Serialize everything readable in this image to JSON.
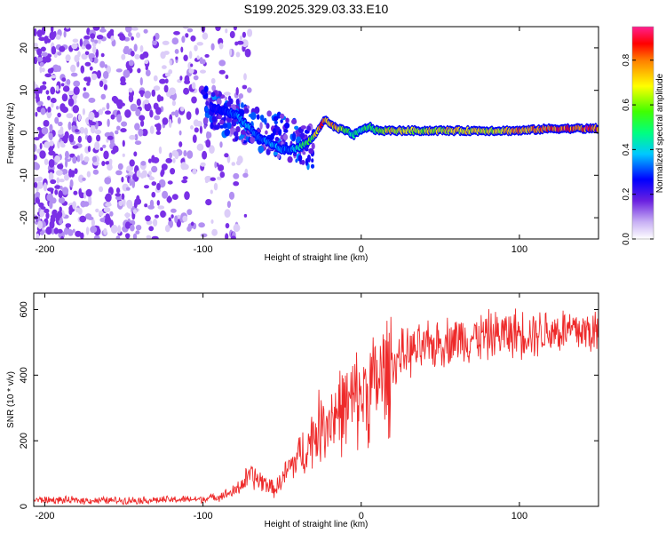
{
  "figure_title": "S199.2025.329.03.33.E10",
  "colors": {
    "noise": "#7f3fe0",
    "line": "#ee2a2a",
    "axis": "#000000",
    "colormap": [
      "#ffffff",
      "#b090f0",
      "#6020e0",
      "#0000ff",
      "#00c8ff",
      "#00ff80",
      "#60ff00",
      "#ffff00",
      "#ff8000",
      "#ff0000",
      "#ff2090"
    ]
  },
  "chart_data": [
    {
      "type": "heatmap",
      "title": "S199.2025.329.03.33.E10",
      "xlabel": "Height of straight line (km)",
      "ylabel": "Frequency (Hz)",
      "xlim": [
        -207,
        150
      ],
      "ylim": [
        -25,
        25
      ],
      "xticks": [
        -200,
        -100,
        0,
        100
      ],
      "xtick_labels": [
        "-200",
        "-100",
        "0",
        "100"
      ],
      "yticks": [
        -20,
        -10,
        0,
        10,
        20
      ],
      "ytick_labels": [
        "-20",
        "-10",
        "0",
        "10",
        "20"
      ],
      "colorbar": {
        "label": "Normalized spectral amplitude",
        "range": [
          0,
          0.95
        ],
        "ticks": [
          0,
          0.2,
          0.4,
          0.6,
          0.8
        ],
        "tick_labels": [
          "0.0",
          "0.2",
          "0.4",
          "0.6",
          "0.8"
        ]
      },
      "ridge": {
        "description": "narrow high-amplitude frequency line",
        "x": [
          -95,
          -85,
          -78,
          -70,
          -65,
          -60,
          -55,
          -50,
          -45,
          -40,
          -35,
          -30,
          -27,
          -24,
          -22,
          -20,
          -15,
          -10,
          -5,
          0,
          5,
          10,
          20,
          40,
          60,
          80,
          100,
          120,
          140,
          150
        ],
        "y": [
          6,
          5,
          4,
          1,
          -1,
          -2,
          -3,
          -4,
          -4,
          -3.5,
          -2.5,
          -1,
          1,
          2.5,
          3,
          2,
          1,
          0.5,
          -0.5,
          0.5,
          1.5,
          0.5,
          0.5,
          0.5,
          0.5,
          0.5,
          0.5,
          1,
          1,
          1
        ],
        "amplitude": [
          0.25,
          0.3,
          0.35,
          0.4,
          0.3,
          0.35,
          0.4,
          0.35,
          0.35,
          0.45,
          0.55,
          0.65,
          0.85,
          0.9,
          0.85,
          0.8,
          0.75,
          0.6,
          0.5,
          0.5,
          0.55,
          0.6,
          0.75,
          0.7,
          0.75,
          0.7,
          0.8,
          0.85,
          0.9,
          0.9
        ]
      },
      "noise_region": {
        "x_range": [
          -207,
          -85
        ],
        "y_range": [
          -25,
          25
        ],
        "amplitude": 0.1
      }
    },
    {
      "type": "line",
      "xlabel": "Height of straight line (km)",
      "ylabel": "SNR (10 * v/v)",
      "xlim": [
        -207,
        150
      ],
      "ylim": [
        0,
        650
      ],
      "xticks": [
        -200,
        -100,
        0,
        100
      ],
      "xtick_labels": [
        "-200",
        "-100",
        "0",
        "100"
      ],
      "yticks": [
        0,
        200,
        400,
        600
      ],
      "ytick_labels": [
        "0",
        "200",
        "400",
        "600"
      ],
      "series": [
        {
          "name": "SNR",
          "x": [
            -207,
            -180,
            -150,
            -120,
            -100,
            -90,
            -80,
            -75,
            -70,
            -65,
            -60,
            -55,
            -50,
            -45,
            -40,
            -35,
            -30,
            -25,
            -20,
            -15,
            -10,
            -5,
            0,
            5,
            10,
            15,
            20,
            25,
            30,
            40,
            50,
            60,
            70,
            80,
            90,
            100,
            110,
            120,
            130,
            140,
            150
          ],
          "y": [
            20,
            18,
            18,
            20,
            22,
            30,
            45,
            70,
            95,
            80,
            70,
            50,
            80,
            120,
            150,
            170,
            220,
            250,
            270,
            290,
            300,
            320,
            340,
            360,
            380,
            400,
            430,
            460,
            470,
            480,
            500,
            510,
            515,
            520,
            525,
            530,
            530,
            535,
            535,
            535,
            530
          ]
        }
      ]
    }
  ]
}
